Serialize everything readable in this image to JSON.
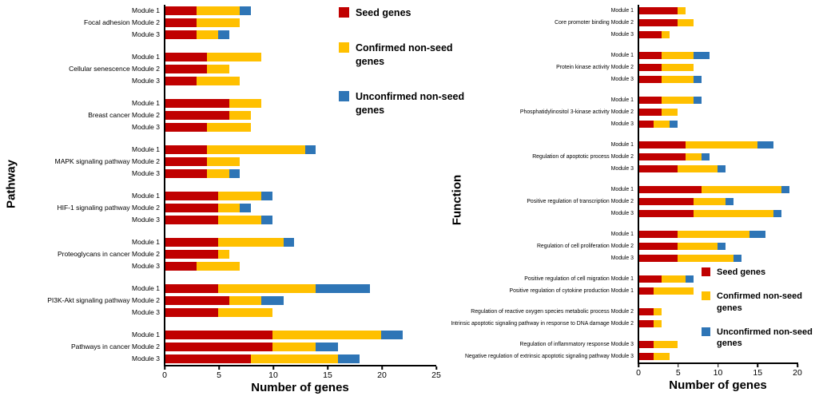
{
  "legends": {
    "left": {
      "items": [
        {
          "key": "seed",
          "label": "Seed genes",
          "color": "#C00000"
        },
        {
          "key": "confirmed",
          "label": "Confirmed non-seed genes",
          "color": "#FFC000"
        },
        {
          "key": "unconfirmed",
          "label": "Unconfirmed non-seed\ngenes",
          "color": "#2E75B6"
        }
      ]
    },
    "right": {
      "items": [
        {
          "key": "seed",
          "label": "Seed genes",
          "color": "#C00000"
        },
        {
          "key": "confirmed",
          "label": "Confirmed non-seed\ngenes",
          "color": "#FFC000"
        },
        {
          "key": "unconfirmed",
          "label": "Unconfirmed non-seed\ngenes",
          "color": "#2E75B6"
        }
      ]
    }
  },
  "chart_data": [
    {
      "type": "bar",
      "stacked": true,
      "orientation": "horizontal",
      "ylabel": "Pathway",
      "xlabel": "Number of genes",
      "xlim": [
        0,
        25
      ],
      "xticks": [
        0,
        5,
        10,
        15,
        20,
        25
      ],
      "series_names": [
        "Seed genes",
        "Confirmed non-seed genes",
        "Unconfirmed non-seed genes"
      ],
      "colors": [
        "#C00000",
        "#FFC000",
        "#2E75B6"
      ],
      "groups": [
        {
          "rows": [
            {
              "label": "Module 1",
              "values": [
                3,
                4,
                1
              ]
            },
            {
              "label": "Focal adhesion Module 2",
              "values": [
                3,
                4,
                0
              ]
            },
            {
              "label": "Module 3",
              "values": [
                3,
                2,
                1
              ]
            }
          ]
        },
        {
          "rows": [
            {
              "label": "Module 1",
              "values": [
                4,
                5,
                0
              ]
            },
            {
              "label": "Cellular senescence Module 2",
              "values": [
                4,
                2,
                0
              ]
            },
            {
              "label": "Module 3",
              "values": [
                3,
                4,
                0
              ]
            }
          ]
        },
        {
          "rows": [
            {
              "label": "Module 1",
              "values": [
                6,
                3,
                0
              ]
            },
            {
              "label": "Breast cancer Module 2",
              "values": [
                6,
                2,
                0
              ]
            },
            {
              "label": "Module 3",
              "values": [
                4,
                4,
                0
              ]
            }
          ]
        },
        {
          "rows": [
            {
              "label": "Module 1",
              "values": [
                4,
                9,
                1
              ]
            },
            {
              "label": "MAPK signaling pathway Module 2",
              "values": [
                4,
                3,
                0
              ]
            },
            {
              "label": "Module 3",
              "values": [
                4,
                2,
                1
              ]
            }
          ]
        },
        {
          "rows": [
            {
              "label": "Module 1",
              "values": [
                5,
                4,
                1
              ]
            },
            {
              "label": "HIF-1 signaling pathway Module 2",
              "values": [
                5,
                2,
                1
              ]
            },
            {
              "label": "Module 3",
              "values": [
                5,
                4,
                1
              ]
            }
          ]
        },
        {
          "rows": [
            {
              "label": "Module 1",
              "values": [
                5,
                6,
                1
              ]
            },
            {
              "label": "Proteoglycans in cancer Module 2",
              "values": [
                5,
                1,
                0
              ]
            },
            {
              "label": "Module 3",
              "values": [
                3,
                4,
                0
              ]
            }
          ]
        },
        {
          "rows": [
            {
              "label": "Module 1",
              "values": [
                5,
                9,
                5
              ]
            },
            {
              "label": "PI3K-Akt signaling pathway Module 2",
              "values": [
                6,
                3,
                2
              ]
            },
            {
              "label": "Module 3",
              "values": [
                5,
                5,
                0
              ]
            }
          ]
        },
        {
          "rows": [
            {
              "label": "Module 1",
              "values": [
                10,
                10,
                2
              ]
            },
            {
              "label": "Pathways in cancer Module 2",
              "values": [
                10,
                4,
                2
              ]
            },
            {
              "label": "Module 3",
              "values": [
                8,
                8,
                2
              ]
            }
          ]
        }
      ]
    },
    {
      "type": "bar",
      "stacked": true,
      "orientation": "horizontal",
      "ylabel": "Function",
      "xlabel": "Number of genes",
      "xlim": [
        0,
        20
      ],
      "xticks": [
        0,
        5,
        10,
        15,
        20
      ],
      "series_names": [
        "Seed genes",
        "Confirmed non-seed genes",
        "Unconfirmed non-seed genes"
      ],
      "colors": [
        "#C00000",
        "#FFC000",
        "#2E75B6"
      ],
      "groups": [
        {
          "rows": [
            {
              "label": "Module 1",
              "values": [
                5,
                1,
                0
              ]
            },
            {
              "label": "Core promoter binding Module 2",
              "values": [
                5,
                2,
                0
              ]
            },
            {
              "label": "Module 3",
              "values": [
                3,
                1,
                0
              ]
            }
          ]
        },
        {
          "rows": [
            {
              "label": "Module 1",
              "values": [
                3,
                4,
                2
              ]
            },
            {
              "label": "Protein kinase activity Module 2",
              "values": [
                3,
                4,
                0
              ]
            },
            {
              "label": "Module 3",
              "values": [
                3,
                4,
                1
              ]
            }
          ]
        },
        {
          "rows": [
            {
              "label": "Module 1",
              "values": [
                3,
                4,
                1
              ]
            },
            {
              "label": "Phosphatidylinositol 3-kinase activity Module 2",
              "values": [
                3,
                2,
                0
              ]
            },
            {
              "label": "Module 3",
              "values": [
                2,
                2,
                1
              ]
            }
          ]
        },
        {
          "rows": [
            {
              "label": "Module 1",
              "values": [
                6,
                9,
                2
              ]
            },
            {
              "label": "Regulation of apoptotic process Module 2",
              "values": [
                6,
                2,
                1
              ]
            },
            {
              "label": "Module 3",
              "values": [
                5,
                5,
                1
              ]
            }
          ]
        },
        {
          "rows": [
            {
              "label": "Module 1",
              "values": [
                8,
                10,
                1
              ]
            },
            {
              "label": "Positive regulation of transcription Module 2",
              "values": [
                7,
                4,
                1
              ]
            },
            {
              "label": "Module 3",
              "values": [
                7,
                10,
                1
              ]
            }
          ]
        },
        {
          "rows": [
            {
              "label": "Module 1",
              "values": [
                5,
                9,
                2
              ]
            },
            {
              "label": "Regulation of cell proliferation Module 2",
              "values": [
                5,
                5,
                1
              ]
            },
            {
              "label": "Module 3",
              "values": [
                5,
                7,
                1
              ]
            }
          ]
        },
        {
          "rows": [
            {
              "label": "Positive regulation of cell migration Module 1",
              "values": [
                3,
                3,
                1
              ]
            },
            {
              "label": "Positive regulation of cytokine production Module 1",
              "values": [
                2,
                5,
                0
              ]
            }
          ]
        },
        {
          "rows": [
            {
              "label": "Regulation of reactive oxygen species metabolic process Module 2",
              "values": [
                2,
                1,
                0
              ]
            },
            {
              "label": "Intrinsic apoptotic signaling pathway in response to DNA damage Module 2",
              "values": [
                2,
                1,
                0
              ]
            }
          ]
        },
        {
          "rows": [
            {
              "label": "Regulation of inflammatory response Module 3",
              "values": [
                2,
                3,
                0
              ]
            },
            {
              "label": "Negative regulation of extrinsic apoptotic signaling pathway Module 3",
              "values": [
                2,
                2,
                0
              ]
            }
          ]
        }
      ]
    }
  ]
}
